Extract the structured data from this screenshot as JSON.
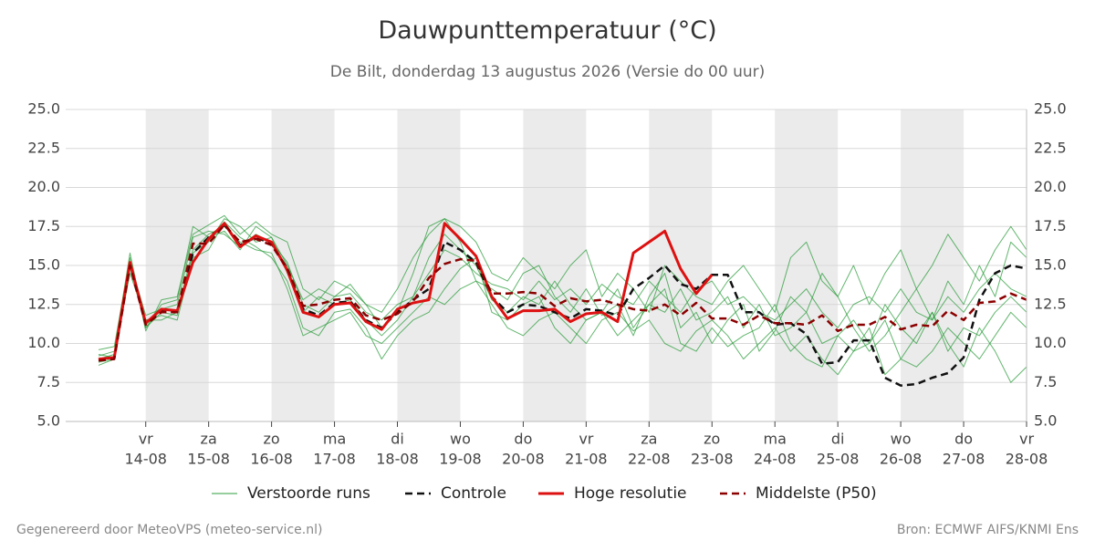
{
  "chart_data": {
    "type": "line",
    "title": "Dauwpunttemperatuur (°C)",
    "subtitle": "De Bilt, donderdag 13 augustus 2026 (Versie do 00 uur)",
    "footer_left": "Gegenereerd door MeteoVPS (meteo-service.nl)",
    "footer_right": "Bron: ECMWF AIFS/KNMI Ens",
    "categories": [
      null,
      null,
      null,
      [
        "vr",
        "14-08"
      ],
      null,
      null,
      null,
      [
        "za",
        "15-08"
      ],
      null,
      null,
      null,
      [
        "zo",
        "16-08"
      ],
      null,
      null,
      null,
      [
        "ma",
        "17-08"
      ],
      null,
      null,
      null,
      [
        "di",
        "18-08"
      ],
      null,
      null,
      null,
      [
        "wo",
        "19-08"
      ],
      null,
      null,
      null,
      [
        "do",
        "20-08"
      ],
      null,
      null,
      null,
      [
        "vr",
        "21-08"
      ],
      null,
      null,
      null,
      [
        "za",
        "22-08"
      ],
      null,
      null,
      null,
      [
        "zo",
        "23-08"
      ],
      null,
      null,
      null,
      [
        "ma",
        "24-08"
      ],
      null,
      null,
      null,
      [
        "di",
        "25-08"
      ],
      null,
      null,
      null,
      [
        "wo",
        "26-08"
      ],
      null,
      null,
      null,
      [
        "do",
        "27-08"
      ],
      null,
      null,
      null,
      [
        "vr",
        "28-08"
      ]
    ],
    "ylim": [
      5,
      25
    ],
    "yticks": [
      {
        "value": 5,
        "label": "5.0"
      },
      {
        "value": 7.5,
        "label": "7.5"
      },
      {
        "value": 10,
        "label": "10.0"
      },
      {
        "value": 12.5,
        "label": "12.5"
      },
      {
        "value": 15,
        "label": "15.0"
      },
      {
        "value": 17.5,
        "label": "17.5"
      },
      {
        "value": 20,
        "label": "20.0"
      },
      {
        "value": 22.5,
        "label": "22.5"
      },
      {
        "value": 25,
        "label": "25.0"
      }
    ],
    "grid": true,
    "series": [
      {
        "name": "Verstoorde runs",
        "color": "#2e9e3e",
        "members": [
          [
            9.2,
            9.5,
            15.8,
            11.0,
            12.5,
            12.8,
            17.5,
            16.8,
            17.2,
            16.0,
            17.5,
            16.8,
            15.0,
            12.8,
            13.5,
            13.0,
            13.8,
            12.5,
            11.0,
            12.0,
            14.5,
            17.5,
            18.0,
            16.5,
            14.0,
            13.5,
            12.8,
            14.5,
            15.0,
            13.0,
            12.0,
            13.5,
            11.8,
            12.5,
            10.5,
            13.0,
            14.5,
            11.0,
            12.0,
            10.0,
            11.5,
            12.5,
            9.5,
            10.8,
            13.0,
            12.0,
            14.5,
            13.0,
            11.0,
            9.5,
            10.5,
            12.0,
            13.5,
            11.5,
            14.0,
            12.5,
            15.0,
            13.0,
            16.5,
            15.5
          ],
          [
            8.6,
            9.0,
            14.8,
            11.5,
            11.8,
            11.5,
            15.5,
            16.0,
            17.8,
            16.8,
            16.2,
            15.5,
            14.0,
            11.0,
            10.5,
            12.0,
            12.2,
            11.0,
            9.0,
            10.5,
            11.5,
            12.0,
            13.5,
            14.8,
            15.5,
            12.0,
            11.5,
            12.5,
            13.0,
            11.0,
            10.0,
            11.5,
            12.0,
            10.5,
            11.5,
            12.5,
            13.5,
            10.0,
            9.5,
            11.0,
            9.8,
            10.5,
            11.0,
            12.5,
            10.0,
            9.0,
            8.5,
            10.5,
            9.5,
            11.0,
            8.0,
            9.0,
            10.5,
            12.0,
            10.0,
            8.5,
            11.0,
            9.5,
            7.5,
            8.5
          ],
          [
            9.6,
            9.8,
            15.5,
            10.8,
            12.8,
            13.0,
            17.0,
            17.6,
            18.2,
            17.0,
            17.8,
            17.0,
            16.5,
            13.5,
            12.8,
            14.0,
            13.5,
            12.5,
            12.0,
            13.5,
            15.5,
            17.0,
            18.0,
            17.5,
            16.5,
            14.5,
            14.0,
            15.5,
            14.5,
            13.5,
            15.0,
            16.0,
            13.0,
            14.5,
            13.5,
            12.0,
            15.0,
            14.0,
            13.0,
            12.5,
            14.0,
            15.0,
            13.5,
            12.0,
            15.5,
            16.5,
            14.0,
            13.0,
            15.0,
            12.5,
            14.5,
            16.0,
            13.5,
            15.0,
            17.0,
            15.5,
            14.0,
            16.0,
            17.5,
            16.0
          ],
          [
            9.0,
            9.3,
            14.5,
            11.5,
            11.5,
            12.0,
            16.0,
            17.0,
            17.5,
            16.5,
            16.0,
            15.8,
            13.5,
            10.5,
            11.0,
            11.5,
            12.0,
            10.5,
            10.0,
            11.0,
            12.0,
            13.0,
            12.5,
            13.5,
            14.0,
            12.5,
            11.0,
            10.5,
            11.5,
            12.0,
            11.0,
            10.0,
            11.5,
            12.0,
            10.8,
            11.5,
            10.0,
            9.5,
            10.8,
            11.5,
            10.5,
            9.0,
            10.0,
            11.0,
            9.5,
            10.5,
            9.0,
            8.0,
            9.5,
            10.0,
            11.5,
            9.0,
            8.5,
            9.5,
            11.0,
            10.0,
            9.0,
            10.5,
            12.0,
            11.0
          ],
          [
            9.3,
            9.1,
            15.2,
            11.8,
            12.2,
            12.5,
            16.8,
            17.2,
            17.0,
            16.2,
            17.0,
            16.5,
            15.2,
            12.5,
            12.0,
            13.0,
            13.2,
            12.0,
            11.5,
            12.5,
            13.0,
            14.5,
            16.0,
            15.5,
            14.5,
            13.8,
            13.5,
            12.8,
            14.0,
            12.8,
            13.5,
            12.5,
            13.8,
            13.0,
            12.5,
            14.0,
            13.0,
            12.0,
            13.5,
            14.0,
            12.5,
            13.0,
            12.0,
            11.5,
            12.5,
            13.5,
            12.0,
            11.0,
            12.5,
            13.0,
            12.0,
            13.5,
            12.0,
            11.5,
            13.0,
            12.0,
            13.5,
            14.5,
            13.5,
            13.0
          ],
          [
            8.8,
            9.0,
            15.0,
            11.0,
            12.0,
            11.8,
            15.8,
            16.5,
            18.0,
            17.5,
            16.5,
            16.8,
            14.5,
            12.0,
            13.0,
            12.5,
            12.8,
            11.5,
            10.5,
            11.5,
            13.0,
            15.5,
            17.0,
            16.0,
            15.0,
            12.8,
            12.0,
            13.0,
            12.5,
            14.0,
            12.5,
            11.5,
            12.0,
            13.5,
            11.0,
            12.5,
            12.0,
            13.5,
            11.5,
            12.0,
            13.0,
            11.0,
            12.5,
            10.5,
            11.0,
            12.0,
            10.0,
            10.5,
            11.5,
            10.0,
            12.5,
            11.0,
            10.0,
            12.0,
            9.5,
            11.0,
            10.5,
            12.0,
            13.0,
            12.0
          ]
        ]
      },
      {
        "name": "Controle",
        "color": "#111111",
        "dash": true,
        "values": [
          9.0,
          9.1,
          15.1,
          11.3,
          12.1,
          12.0,
          15.8,
          16.8,
          17.6,
          16.3,
          16.8,
          16.4,
          14.8,
          12.2,
          11.8,
          12.6,
          12.7,
          11.5,
          11.0,
          12.0,
          12.8,
          13.5,
          16.5,
          16.0,
          15.2,
          13.0,
          12.0,
          12.5,
          12.4,
          12.0,
          11.6,
          12.2,
          12.1,
          11.8,
          13.5,
          14.2,
          15.0,
          13.8,
          13.5,
          14.4,
          14.4,
          12.0,
          12.0,
          11.2,
          11.3,
          10.6,
          8.7,
          8.8,
          10.2,
          10.2,
          7.8,
          7.3,
          7.4,
          7.8,
          8.1,
          9.1,
          12.8,
          14.5,
          15.0,
          14.8
        ]
      },
      {
        "name": "Hoge resolutie",
        "color": "#dd1111",
        "width": 3,
        "values": [
          9.0,
          9.1,
          15.2,
          11.3,
          12.2,
          12.1,
          15.2,
          16.7,
          17.7,
          16.2,
          16.9,
          16.5,
          14.7,
          12.0,
          11.7,
          12.5,
          12.6,
          11.4,
          10.9,
          12.2,
          12.6,
          12.8,
          17.7,
          16.7,
          15.6,
          13.0,
          11.6,
          12.1,
          12.1,
          12.2,
          11.4,
          11.9,
          12.0,
          11.4,
          15.8,
          16.5,
          17.2,
          14.8,
          13.2,
          14.4,
          null,
          null,
          null,
          null,
          null,
          null,
          null,
          null,
          null,
          null,
          null,
          null,
          null,
          null,
          null,
          null,
          null,
          null,
          null,
          null
        ]
      },
      {
        "name": "Middelste (P50)",
        "color": "#8b0000",
        "dash": true,
        "values": [
          8.9,
          9.0,
          15.0,
          11.2,
          12.0,
          12.0,
          16.4,
          16.4,
          17.6,
          16.5,
          16.7,
          16.3,
          14.8,
          12.4,
          12.5,
          12.8,
          12.9,
          11.8,
          11.5,
          11.9,
          12.7,
          14.2,
          15.1,
          15.4,
          15.3,
          13.2,
          13.2,
          13.3,
          13.2,
          12.4,
          12.9,
          12.7,
          12.8,
          12.5,
          12.2,
          12.1,
          12.5,
          11.8,
          12.6,
          11.6,
          11.6,
          11.2,
          11.8,
          11.3,
          11.3,
          11.2,
          11.8,
          10.8,
          11.2,
          11.2,
          11.7,
          10.9,
          11.2,
          11.1,
          12.1,
          11.5,
          12.6,
          12.7,
          13.2,
          12.8
        ]
      }
    ]
  }
}
